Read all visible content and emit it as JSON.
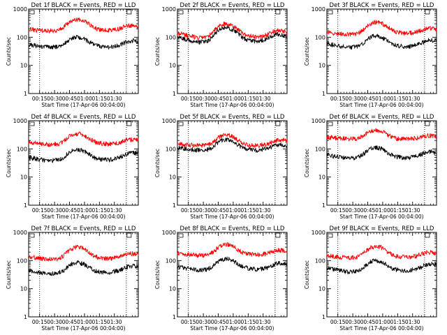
{
  "chart_data": [
    {
      "type": "line",
      "title": "Det 1f BLACK = Events, RED = LLD",
      "xlabel": "Start Time (17-Apr-06 00:04:00)",
      "ylabel": "Counts/sec",
      "yscale": "log",
      "ylim": [
        1,
        1000
      ],
      "xlim_minutes": [
        0,
        110
      ],
      "x_ticks": [
        "00:15",
        "00:30",
        "00:45",
        "01:00",
        "01:15",
        "01:30"
      ],
      "y_ticks": [
        "1",
        "10",
        "100",
        "1000"
      ],
      "vlines_minutes": [
        11,
        98
      ],
      "grid": false,
      "series": [
        {
          "color": "#000000",
          "x": [
            0,
            10,
            20,
            30,
            35,
            40,
            45,
            50,
            55,
            60,
            65,
            70,
            80,
            90,
            95,
            100,
            105,
            110
          ],
          "values": [
            55,
            48,
            44,
            46,
            55,
            75,
            95,
            100,
            90,
            70,
            55,
            48,
            44,
            50,
            60,
            72,
            75,
            68
          ]
        },
        {
          "color": "#ff0000",
          "x": [
            0,
            10,
            20,
            30,
            35,
            40,
            45,
            50,
            55,
            60,
            65,
            70,
            80,
            90,
            95,
            100,
            105,
            110
          ],
          "values": [
            190,
            175,
            165,
            175,
            220,
            320,
            420,
            440,
            400,
            300,
            220,
            185,
            175,
            195,
            230,
            265,
            250,
            225
          ]
        }
      ]
    },
    {
      "type": "line",
      "title": "Det 2f BLACK = Events, RED = LLD",
      "xlabel": "Start Time (17-Apr-06 00:04:00)",
      "ylabel": "Counts/sec",
      "yscale": "log",
      "ylim": [
        1,
        1000
      ],
      "xlim_minutes": [
        0,
        110
      ],
      "x_ticks": [
        "00:15",
        "00:30",
        "00:45",
        "01:00",
        "01:15",
        "01:30"
      ],
      "y_ticks": [
        "1",
        "10",
        "100",
        "1000"
      ],
      "vlines_minutes": [
        11,
        98
      ],
      "grid": false,
      "series": [
        {
          "color": "#000000",
          "x": [
            0,
            10,
            20,
            30,
            35,
            40,
            45,
            50,
            55,
            60,
            65,
            70,
            80,
            90,
            95,
            100,
            105,
            110
          ],
          "values": [
            100,
            80,
            65,
            70,
            100,
            160,
            210,
            220,
            190,
            140,
            100,
            80,
            70,
            85,
            110,
            130,
            120,
            110
          ]
        },
        {
          "color": "#ff0000",
          "x": [
            0,
            10,
            20,
            30,
            35,
            40,
            45,
            50,
            55,
            60,
            65,
            70,
            80,
            90,
            95,
            100,
            105,
            110
          ],
          "values": [
            140,
            115,
            95,
            100,
            140,
            220,
            290,
            300,
            260,
            190,
            140,
            115,
            100,
            120,
            150,
            175,
            165,
            150
          ]
        }
      ]
    },
    {
      "type": "line",
      "title": "Det 3f BLACK = Events, RED = LLD",
      "xlabel": "Start Time (17-Apr-06 00:04:00)",
      "ylabel": "Counts/sec",
      "yscale": "log",
      "ylim": [
        1,
        1000
      ],
      "xlim_minutes": [
        0,
        110
      ],
      "x_ticks": [
        "00:15",
        "00:30",
        "00:45",
        "01:00",
        "01:15",
        "01:30"
      ],
      "y_ticks": [
        "1",
        "10",
        "100",
        "1000"
      ],
      "vlines_minutes": [
        11,
        98
      ],
      "grid": false,
      "series": [
        {
          "color": "#000000",
          "x": [
            0,
            10,
            20,
            30,
            35,
            40,
            45,
            50,
            55,
            60,
            65,
            70,
            80,
            90,
            95,
            100,
            105,
            110
          ],
          "values": [
            60,
            50,
            44,
            46,
            55,
            80,
            105,
            110,
            100,
            75,
            58,
            50,
            45,
            52,
            62,
            75,
            78,
            72
          ]
        },
        {
          "color": "#ff0000",
          "x": [
            0,
            10,
            20,
            30,
            35,
            40,
            45,
            50,
            55,
            60,
            65,
            70,
            80,
            90,
            95,
            100,
            105,
            110
          ],
          "values": [
            150,
            135,
            125,
            130,
            160,
            240,
            320,
            350,
            320,
            240,
            180,
            150,
            135,
            150,
            175,
            205,
            205,
            190
          ]
        }
      ]
    },
    {
      "type": "line",
      "title": "Det 4f BLACK = Events, RED = LLD",
      "xlabel": "Start Time (17-Apr-06 00:04:00)",
      "ylabel": "Counts/sec",
      "yscale": "log",
      "ylim": [
        1,
        1000
      ],
      "xlim_minutes": [
        0,
        110
      ],
      "x_ticks": [
        "00:15",
        "00:30",
        "00:45",
        "01:00",
        "01:15",
        "01:30"
      ],
      "y_ticks": [
        "1",
        "10",
        "100",
        "1000"
      ],
      "vlines_minutes": [
        11,
        98
      ],
      "grid": false,
      "series": [
        {
          "color": "#000000",
          "x": [
            0,
            10,
            20,
            30,
            35,
            40,
            45,
            50,
            55,
            60,
            65,
            70,
            80,
            90,
            95,
            100,
            105,
            110
          ],
          "values": [
            50,
            42,
            38,
            40,
            48,
            70,
            90,
            95,
            85,
            65,
            50,
            44,
            40,
            48,
            58,
            70,
            72,
            68
          ]
        },
        {
          "color": "#ff0000",
          "x": [
            0,
            10,
            20,
            30,
            35,
            40,
            45,
            50,
            55,
            60,
            65,
            70,
            80,
            90,
            95,
            100,
            105,
            110
          ],
          "values": [
            175,
            155,
            140,
            150,
            185,
            260,
            330,
            350,
            310,
            240,
            185,
            160,
            150,
            165,
            190,
            215,
            210,
            200
          ]
        }
      ]
    },
    {
      "type": "line",
      "title": "Det 5f BLACK = Events, RED = LLD",
      "xlabel": "Start Time (17-Apr-06 00:04:00)",
      "ylabel": "Counts/sec",
      "yscale": "log",
      "ylim": [
        1,
        1000
      ],
      "xlim_minutes": [
        0,
        110
      ],
      "x_ticks": [
        "00:15",
        "00:30",
        "00:45",
        "01:00",
        "01:15",
        "01:30"
      ],
      "y_ticks": [
        "1",
        "10",
        "100",
        "1000"
      ],
      "vlines_minutes": [
        11,
        98
      ],
      "grid": false,
      "series": [
        {
          "color": "#000000",
          "x": [
            0,
            10,
            20,
            30,
            35,
            40,
            45,
            50,
            55,
            60,
            65,
            70,
            80,
            90,
            95,
            100,
            105,
            110
          ],
          "values": [
            110,
            100,
            90,
            92,
            110,
            160,
            210,
            220,
            190,
            145,
            110,
            95,
            90,
            100,
            120,
            140,
            140,
            130
          ]
        },
        {
          "color": "#ff0000",
          "x": [
            0,
            10,
            20,
            30,
            35,
            40,
            45,
            50,
            55,
            60,
            65,
            70,
            80,
            90,
            95,
            100,
            105,
            110
          ],
          "values": [
            150,
            140,
            130,
            135,
            160,
            230,
            300,
            320,
            280,
            210,
            160,
            140,
            130,
            145,
            175,
            200,
            205,
            190
          ]
        }
      ]
    },
    {
      "type": "line",
      "title": "Det 6f BLACK = Events, RED = LLD",
      "xlabel": "Start Time (17-Apr-06 00:04:00)",
      "ylabel": "Counts/sec",
      "yscale": "log",
      "ylim": [
        1,
        1000
      ],
      "xlim_minutes": [
        0,
        110
      ],
      "x_ticks": [
        "00:15",
        "00:30",
        "00:45",
        "01:00",
        "01:15",
        "01:30"
      ],
      "y_ticks": [
        "1",
        "10",
        "100",
        "1000"
      ],
      "vlines_minutes": [
        11,
        98
      ],
      "grid": false,
      "series": [
        {
          "color": "#000000",
          "x": [
            0,
            10,
            20,
            30,
            35,
            40,
            45,
            50,
            55,
            60,
            65,
            70,
            80,
            90,
            95,
            100,
            105,
            110
          ],
          "values": [
            60,
            52,
            46,
            48,
            58,
            82,
            105,
            110,
            100,
            76,
            60,
            52,
            47,
            54,
            64,
            76,
            78,
            72
          ]
        },
        {
          "color": "#ff0000",
          "x": [
            0,
            10,
            20,
            30,
            35,
            40,
            45,
            50,
            55,
            60,
            65,
            70,
            80,
            90,
            95,
            100,
            105,
            110
          ],
          "values": [
            260,
            240,
            225,
            230,
            270,
            360,
            440,
            460,
            420,
            330,
            260,
            230,
            220,
            240,
            270,
            300,
            300,
            280
          ]
        }
      ]
    },
    {
      "type": "line",
      "title": "Det 7f BLACK = Events, RED = LLD",
      "xlabel": "Start Time (17-Apr-06 00:04:00)",
      "ylabel": "Counts/sec",
      "yscale": "log",
      "ylim": [
        1,
        1000
      ],
      "xlim_minutes": [
        0,
        110
      ],
      "x_ticks": [
        "00:15",
        "00:30",
        "00:45",
        "01:00",
        "01:15",
        "01:30"
      ],
      "y_ticks": [
        "1",
        "10",
        "100",
        "1000"
      ],
      "vlines_minutes": [
        11,
        98
      ],
      "grid": false,
      "series": [
        {
          "color": "#000000",
          "x": [
            0,
            10,
            20,
            30,
            35,
            40,
            45,
            50,
            55,
            60,
            65,
            70,
            80,
            90,
            95,
            100,
            105,
            110
          ],
          "values": [
            45,
            38,
            34,
            36,
            44,
            62,
            82,
            85,
            75,
            58,
            45,
            40,
            37,
            44,
            52,
            62,
            64,
            60
          ]
        },
        {
          "color": "#ff0000",
          "x": [
            0,
            10,
            20,
            30,
            35,
            40,
            45,
            50,
            55,
            60,
            65,
            70,
            80,
            90,
            95,
            100,
            105,
            110
          ],
          "values": [
            140,
            120,
            110,
            115,
            145,
            210,
            280,
            300,
            265,
            200,
            150,
            125,
            115,
            130,
            155,
            180,
            178,
            165
          ]
        }
      ]
    },
    {
      "type": "line",
      "title": "Det 8f BLACK = Events, RED = LLD",
      "xlabel": "Start Time (17-Apr-06 00:04:00)",
      "ylabel": "Counts/sec",
      "yscale": "log",
      "ylim": [
        1,
        1000
      ],
      "xlim_minutes": [
        0,
        110
      ],
      "x_ticks": [
        "00:15",
        "00:30",
        "00:45",
        "01:00",
        "01:15",
        "01:30"
      ],
      "y_ticks": [
        "1",
        "10",
        "100",
        "1000"
      ],
      "vlines_minutes": [
        11,
        98
      ],
      "grid": false,
      "series": [
        {
          "color": "#000000",
          "x": [
            0,
            10,
            20,
            30,
            35,
            40,
            45,
            50,
            55,
            60,
            65,
            70,
            80,
            90,
            95,
            100,
            105,
            110
          ],
          "values": [
            60,
            52,
            46,
            48,
            58,
            84,
            110,
            115,
            102,
            78,
            62,
            54,
            48,
            55,
            66,
            80,
            82,
            76
          ]
        },
        {
          "color": "#ff0000",
          "x": [
            0,
            10,
            20,
            30,
            35,
            40,
            45,
            50,
            55,
            60,
            65,
            70,
            80,
            90,
            95,
            100,
            105,
            110
          ],
          "values": [
            180,
            165,
            150,
            155,
            190,
            270,
            350,
            370,
            330,
            250,
            195,
            170,
            160,
            175,
            200,
            230,
            230,
            215
          ]
        }
      ]
    },
    {
      "type": "line",
      "title": "Det 9f BLACK = Events, RED = LLD",
      "xlabel": "Start Time (17-Apr-06 00:04:00)",
      "ylabel": "Counts/sec",
      "yscale": "log",
      "ylim": [
        1,
        1000
      ],
      "xlim_minutes": [
        0,
        110
      ],
      "x_ticks": [
        "00:15",
        "00:30",
        "00:45",
        "01:00",
        "01:15",
        "01:30"
      ],
      "y_ticks": [
        "1",
        "10",
        "100",
        "1000"
      ],
      "vlines_minutes": [
        11,
        98
      ],
      "grid": false,
      "series": [
        {
          "color": "#000000",
          "x": [
            0,
            10,
            20,
            30,
            35,
            40,
            45,
            50,
            55,
            60,
            65,
            70,
            80,
            90,
            95,
            100,
            105,
            110
          ],
          "values": [
            55,
            46,
            40,
            42,
            50,
            72,
            95,
            100,
            90,
            68,
            54,
            47,
            42,
            50,
            60,
            72,
            74,
            70
          ]
        },
        {
          "color": "#ff0000",
          "x": [
            0,
            10,
            20,
            30,
            35,
            40,
            45,
            50,
            55,
            60,
            65,
            70,
            80,
            90,
            95,
            100,
            105,
            110
          ],
          "values": [
            150,
            135,
            125,
            130,
            160,
            230,
            300,
            320,
            285,
            215,
            165,
            140,
            130,
            145,
            170,
            195,
            195,
            180
          ]
        }
      ]
    }
  ]
}
